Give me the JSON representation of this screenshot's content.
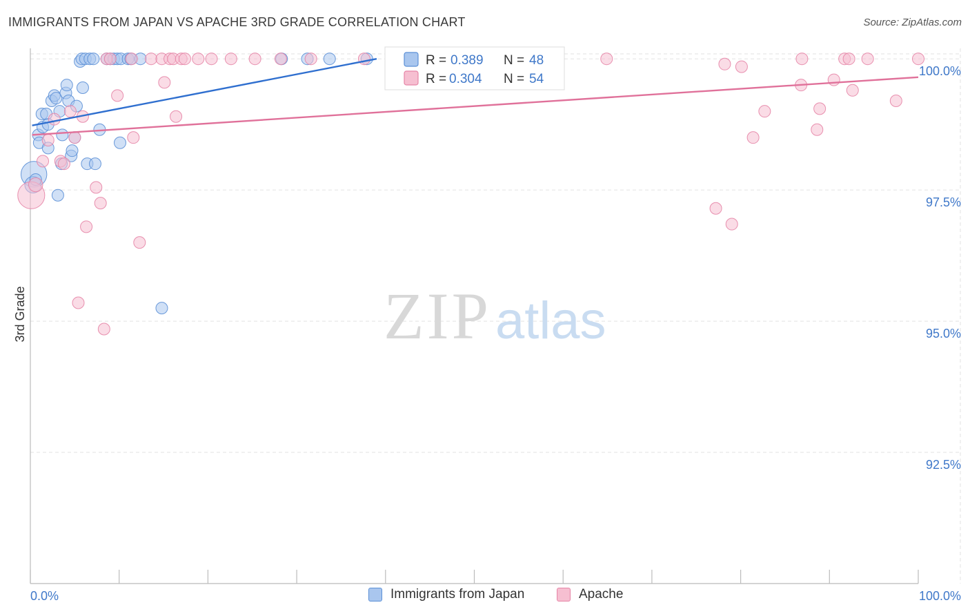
{
  "title": "IMMIGRANTS FROM JAPAN VS APACHE 3RD GRADE CORRELATION CHART",
  "source": "Source: ZipAtlas.com",
  "watermark": {
    "part1": "ZIP",
    "part2": "atlas"
  },
  "colors": {
    "blue": "#5b8fd6",
    "blue_fill": "#a9c6ee",
    "blue_line": "#2f6fcf",
    "pink": "#e684a6",
    "pink_fill": "#f6bfd1",
    "pink_line": "#e0719a",
    "value_text": "#3f78c9",
    "grid": "#e2e2e2"
  },
  "legend_top": [
    {
      "r_label": "R = ",
      "r_value": "0.389",
      "n_label": "N = ",
      "n_value": "48",
      "color": "blue"
    },
    {
      "r_label": "R = ",
      "r_value": "0.304",
      "n_label": "N = ",
      "n_value": "54",
      "color": "pink"
    }
  ],
  "legend_bottom": [
    {
      "label": "Immigrants from Japan",
      "color": "blue"
    },
    {
      "label": "Apache",
      "color": "pink"
    }
  ],
  "chart_data": {
    "type": "scatter",
    "title": "IMMIGRANTS FROM JAPAN VS APACHE 3RD GRADE CORRELATION CHART",
    "xlabel": "",
    "ylabel": "3rd Grade",
    "xlim": [
      0,
      100
    ],
    "ylim": [
      90.0,
      100.2
    ],
    "x_tick_labels": [
      "0.0%",
      "100.0%"
    ],
    "y_ticks": [
      92.5,
      95.0,
      97.5,
      100.0
    ],
    "y_tick_labels": [
      "92.5%",
      "95.0%",
      "97.5%",
      "100.0%"
    ],
    "grid": true,
    "legend_position": "top-center",
    "series": [
      {
        "name": "Immigrants from Japan",
        "color": "blue",
        "trend": [
          [
            0.2,
            98.73
          ],
          [
            39.0,
            100.0
          ]
        ],
        "points": [
          [
            0.4,
            97.8,
            2.2
          ],
          [
            0.3,
            97.6,
            1.4
          ],
          [
            0.6,
            97.7,
            1.0
          ],
          [
            0.9,
            98.55,
            1.0
          ],
          [
            1.0,
            98.4,
            1.0
          ],
          [
            1.4,
            98.7,
            1.0
          ],
          [
            1.3,
            98.95,
            1.0
          ],
          [
            1.8,
            98.95,
            1.0
          ],
          [
            2.0,
            98.75,
            1.0
          ],
          [
            2.0,
            98.3,
            1.0
          ],
          [
            2.4,
            99.2,
            1.0
          ],
          [
            2.7,
            99.3,
            1.0
          ],
          [
            2.9,
            99.25,
            1.0
          ],
          [
            3.1,
            97.4,
            1.0
          ],
          [
            3.3,
            99.0,
            1.0
          ],
          [
            3.5,
            98.0,
            1.0
          ],
          [
            3.6,
            98.55,
            1.0
          ],
          [
            4.0,
            99.35,
            1.0
          ],
          [
            4.1,
            99.5,
            1.0
          ],
          [
            4.3,
            99.2,
            1.0
          ],
          [
            4.6,
            98.15,
            1.0
          ],
          [
            4.7,
            98.25,
            1.0
          ],
          [
            5.0,
            98.5,
            1.0
          ],
          [
            5.2,
            99.1,
            1.0
          ],
          [
            5.6,
            99.95,
            1.0
          ],
          [
            5.8,
            100.0,
            1.0
          ],
          [
            5.9,
            99.45,
            1.0
          ],
          [
            6.2,
            100.0,
            1.0
          ],
          [
            6.4,
            98.0,
            1.0
          ],
          [
            6.7,
            100.0,
            1.0
          ],
          [
            7.1,
            100.0,
            1.0
          ],
          [
            7.3,
            98.0,
            1.0
          ],
          [
            7.8,
            98.65,
            1.0
          ],
          [
            8.6,
            100.0,
            1.0
          ],
          [
            9.0,
            100.0,
            1.0
          ],
          [
            9.4,
            100.0,
            1.0
          ],
          [
            9.8,
            100.0,
            1.0
          ],
          [
            10.2,
            100.0,
            1.0
          ],
          [
            10.1,
            98.4,
            1.0
          ],
          [
            11.0,
            100.0,
            1.0
          ],
          [
            11.3,
            100.0,
            1.0
          ],
          [
            12.4,
            100.0,
            1.0
          ],
          [
            14.8,
            95.25,
            1.0
          ],
          [
            28.3,
            100.0,
            1.0
          ],
          [
            31.2,
            100.0,
            1.0
          ],
          [
            33.7,
            100.0,
            1.0
          ],
          [
            37.9,
            100.0,
            1.0
          ],
          [
            53.2,
            100.0,
            1.0
          ]
        ]
      },
      {
        "name": "Apache",
        "color": "pink",
        "trend": [
          [
            0.2,
            98.55
          ],
          [
            100.0,
            99.65
          ]
        ],
        "points": [
          [
            0.1,
            97.4,
            2.3
          ],
          [
            0.6,
            97.6,
            1.2
          ],
          [
            1.4,
            98.05,
            1.0
          ],
          [
            2.0,
            98.45,
            1.0
          ],
          [
            2.7,
            98.85,
            1.0
          ],
          [
            3.4,
            98.05,
            1.0
          ],
          [
            3.8,
            98.0,
            1.0
          ],
          [
            4.5,
            99.0,
            1.0
          ],
          [
            5.0,
            98.5,
            1.0
          ],
          [
            5.4,
            95.35,
            1.0
          ],
          [
            5.9,
            98.9,
            1.0
          ],
          [
            6.3,
            96.8,
            1.0
          ],
          [
            7.4,
            97.55,
            1.0
          ],
          [
            7.9,
            97.25,
            1.0
          ],
          [
            8.3,
            94.85,
            1.0
          ],
          [
            8.6,
            100.0,
            1.0
          ],
          [
            9.0,
            100.0,
            1.0
          ],
          [
            9.8,
            99.3,
            1.0
          ],
          [
            11.4,
            100.0,
            1.0
          ],
          [
            11.6,
            98.5,
            1.0
          ],
          [
            12.3,
            96.5,
            1.0
          ],
          [
            13.6,
            100.0,
            1.0
          ],
          [
            14.8,
            100.0,
            1.0
          ],
          [
            15.1,
            99.55,
            1.0
          ],
          [
            15.7,
            100.0,
            1.0
          ],
          [
            16.1,
            100.0,
            1.0
          ],
          [
            16.4,
            98.9,
            1.0
          ],
          [
            17.0,
            100.0,
            1.0
          ],
          [
            17.4,
            100.0,
            1.0
          ],
          [
            18.9,
            100.0,
            1.0
          ],
          [
            20.4,
            100.0,
            1.0
          ],
          [
            22.6,
            100.0,
            1.0
          ],
          [
            25.3,
            100.0,
            1.0
          ],
          [
            28.2,
            100.0,
            1.0
          ],
          [
            31.6,
            100.0,
            1.0
          ],
          [
            37.6,
            100.0,
            1.0
          ],
          [
            64.9,
            100.0,
            1.0
          ],
          [
            77.2,
            97.15,
            1.0
          ],
          [
            78.2,
            99.9,
            1.0
          ],
          [
            79.0,
            96.85,
            1.0
          ],
          [
            80.1,
            99.85,
            1.0
          ],
          [
            81.4,
            98.5,
            1.0
          ],
          [
            82.7,
            99.0,
            1.0
          ],
          [
            86.9,
            100.0,
            1.0
          ],
          [
            86.8,
            99.5,
            1.0
          ],
          [
            88.6,
            98.65,
            1.0
          ],
          [
            88.9,
            99.05,
            1.0
          ],
          [
            90.5,
            99.6,
            1.0
          ],
          [
            91.7,
            100.0,
            1.0
          ],
          [
            92.2,
            100.0,
            1.0
          ],
          [
            92.6,
            99.4,
            1.0
          ],
          [
            94.3,
            100.0,
            1.0
          ],
          [
            97.5,
            99.2,
            1.0
          ],
          [
            100.0,
            100.0,
            1.0
          ]
        ]
      }
    ]
  }
}
